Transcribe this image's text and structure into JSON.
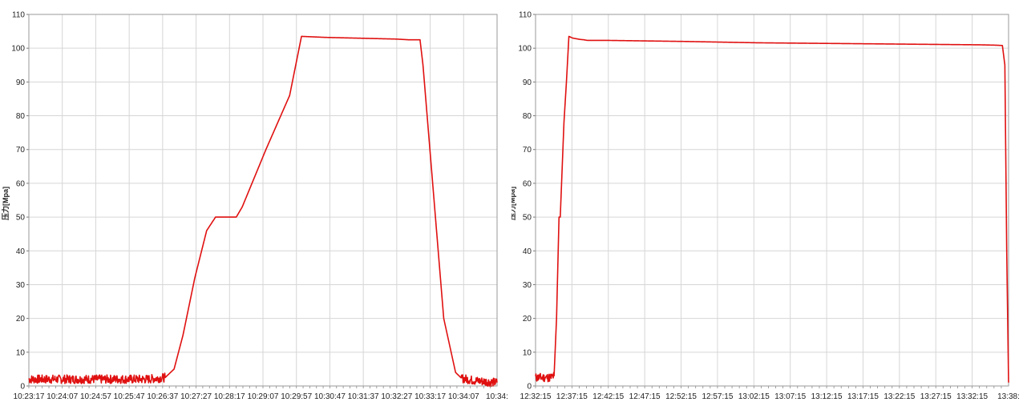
{
  "chart_data": [
    {
      "type": "line",
      "ylabel": "压力[Mpa]",
      "ylim": [
        0,
        110
      ],
      "yticks": [
        "0",
        "10",
        "20",
        "30",
        "40",
        "50",
        "60",
        "70",
        "80",
        "90",
        "100",
        "110"
      ],
      "xticks": [
        "10:23:17",
        "10:24:07",
        "10:24:57",
        "10:25:47",
        "10:26:37",
        "10:27:27",
        "10:28:17",
        "10:29:07",
        "10:29:57",
        "10:30:47",
        "10:31:37",
        "10:32:27",
        "10:33:17",
        "10:34:07",
        "10:34:"
      ],
      "grid": true,
      "color": "#e01010",
      "series": [
        {
          "x": [
            0,
            200,
            230,
            245,
            260,
            280,
            300,
            315,
            320,
            350,
            360,
            400,
            440,
            460,
            500,
            620,
            640,
            660,
            665,
            700,
            720,
            730,
            752,
            790
          ],
          "y": [
            2,
            2,
            2.5,
            5,
            15,
            32,
            46,
            50,
            50,
            50,
            53,
            70,
            86,
            103.5,
            103.2,
            102.7,
            102.5,
            102.5,
            95,
            20,
            4,
            2.3,
            1.6,
            1
          ]
        }
      ]
    },
    {
      "type": "line",
      "ylabel": "压力[Mpa]",
      "ylim": [
        0,
        110
      ],
      "yticks": [
        "0",
        "10",
        "20",
        "30",
        "40",
        "50",
        "60",
        "70",
        "80",
        "90",
        "100",
        "110"
      ],
      "xticks": [
        "12:32:15",
        "12:37:15",
        "12:42:15",
        "12:47:15",
        "12:52:15",
        "12:57:15",
        "13:02:15",
        "13:07:15",
        "13:12:15",
        "13:17:15",
        "13:22:15",
        "13:27:15",
        "13:32:15",
        "13:38:"
      ],
      "grid": true,
      "color": "#e01010",
      "series": [
        {
          "x": [
            0,
            120,
            150,
            170,
            190,
            200,
            230,
            250,
            270,
            300,
            330,
            360,
            390,
            420,
            600,
            1200,
            1800,
            2400,
            3000,
            3600,
            3720,
            3780,
            3800,
            3815,
            3830
          ],
          "y": [
            2.5,
            2.5,
            3,
            20,
            50,
            50,
            78,
            90,
            103.5,
            103,
            102.8,
            102.6,
            102.5,
            102.3,
            102.3,
            102,
            101.6,
            101.4,
            101.2,
            101,
            100.9,
            100.8,
            95,
            40,
            1
          ]
        }
      ]
    }
  ]
}
